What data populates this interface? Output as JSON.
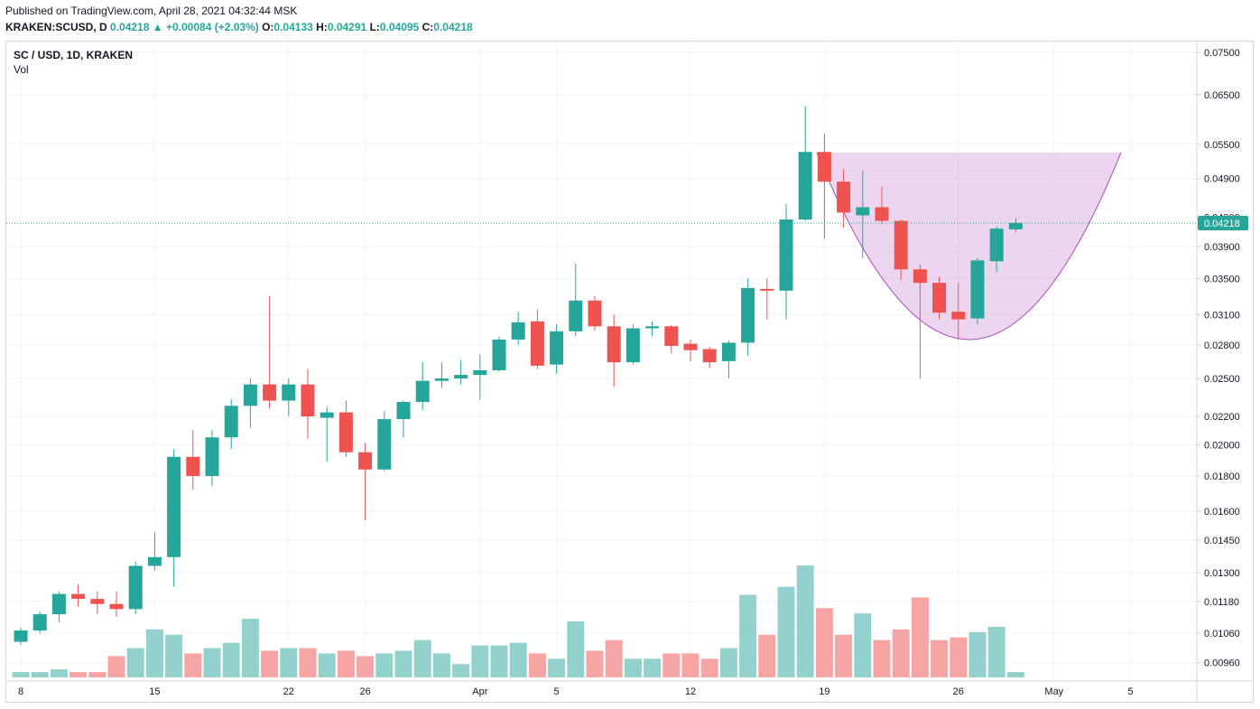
{
  "header": {
    "published": "Published on TradingView.com, April 28, 2021 04:32:44 MSK",
    "symbol_line": "KRAKEN:SCUSD, D",
    "last": "0.04218",
    "change": "+0.00084 (+2.03%)",
    "arrow": "▲",
    "o_label": "O:",
    "o_value": "0.04133",
    "h_label": "H:",
    "h_value": "0.04291",
    "l_label": "L:",
    "l_value": "0.04095",
    "c_label": "C:",
    "c_value": "0.04218"
  },
  "legend": {
    "symbol": "SC / USD, 1D, KRAKEN",
    "volume": "Vol"
  },
  "colors": {
    "up": "#26a69a",
    "down": "#ef5350",
    "vol_up": "#93d2cc",
    "vol_down": "#f6a5a4",
    "pattern": "#e1bee7",
    "pattern_line": "#ab47bc"
  },
  "chart_data": {
    "type": "candlestick",
    "y_scale": "log",
    "ylim": [
      0.00865,
      0.0775
    ],
    "y_ticks": [
      "0.07500",
      "0.06500",
      "0.05500",
      "0.04900",
      "0.04300",
      "0.03900",
      "0.03500",
      "0.03100",
      "0.02800",
      "0.02500",
      "0.02200",
      "0.02000",
      "0.01800",
      "0.01600",
      "0.01450",
      "0.01300",
      "0.01180",
      "0.01060",
      "0.00960"
    ],
    "x_ticks": [
      {
        "label": "8",
        "index": 0
      },
      {
        "label": "15",
        "index": 7
      },
      {
        "label": "22",
        "index": 14
      },
      {
        "label": "26",
        "index": 18
      },
      {
        "label": "Apr",
        "index": 24
      },
      {
        "label": "5",
        "index": 28
      },
      {
        "label": "12",
        "index": 35
      },
      {
        "label": "19",
        "index": 42
      },
      {
        "label": "26",
        "index": 49
      },
      {
        "label": "May",
        "index": 54
      },
      {
        "label": "5",
        "index": 58
      }
    ],
    "last_price": "0.04218",
    "candles": [
      {
        "o": 0.0103,
        "h": 0.0108,
        "l": 0.0102,
        "c": 0.0107
      },
      {
        "o": 0.0107,
        "h": 0.0114,
        "l": 0.0106,
        "c": 0.0113
      },
      {
        "o": 0.0113,
        "h": 0.0122,
        "l": 0.011,
        "c": 0.0121
      },
      {
        "o": 0.0121,
        "h": 0.0125,
        "l": 0.0116,
        "c": 0.0119
      },
      {
        "o": 0.0119,
        "h": 0.0122,
        "l": 0.0113,
        "c": 0.0117
      },
      {
        "o": 0.0117,
        "h": 0.0122,
        "l": 0.0112,
        "c": 0.0115
      },
      {
        "o": 0.0115,
        "h": 0.0135,
        "l": 0.0113,
        "c": 0.0133
      },
      {
        "o": 0.0133,
        "h": 0.0149,
        "l": 0.0131,
        "c": 0.0137
      },
      {
        "o": 0.0137,
        "h": 0.0197,
        "l": 0.0124,
        "c": 0.0192
      },
      {
        "o": 0.0192,
        "h": 0.021,
        "l": 0.0172,
        "c": 0.018
      },
      {
        "o": 0.018,
        "h": 0.021,
        "l": 0.0174,
        "c": 0.0205
      },
      {
        "o": 0.0205,
        "h": 0.0233,
        "l": 0.0197,
        "c": 0.0228
      },
      {
        "o": 0.0228,
        "h": 0.025,
        "l": 0.0212,
        "c": 0.0245
      },
      {
        "o": 0.0245,
        "h": 0.033,
        "l": 0.0226,
        "c": 0.0232
      },
      {
        "o": 0.0232,
        "h": 0.025,
        "l": 0.022,
        "c": 0.0245
      },
      {
        "o": 0.0245,
        "h": 0.0258,
        "l": 0.0204,
        "c": 0.022
      },
      {
        "o": 0.0219,
        "h": 0.0227,
        "l": 0.0189,
        "c": 0.0223
      },
      {
        "o": 0.0223,
        "h": 0.0232,
        "l": 0.0192,
        "c": 0.0195
      },
      {
        "o": 0.0195,
        "h": 0.0201,
        "l": 0.0155,
        "c": 0.0184
      },
      {
        "o": 0.0184,
        "h": 0.0224,
        "l": 0.0183,
        "c": 0.0218
      },
      {
        "o": 0.0218,
        "h": 0.0232,
        "l": 0.0205,
        "c": 0.0231
      },
      {
        "o": 0.0231,
        "h": 0.0264,
        "l": 0.0225,
        "c": 0.0248
      },
      {
        "o": 0.0248,
        "h": 0.0264,
        "l": 0.0242,
        "c": 0.025
      },
      {
        "o": 0.025,
        "h": 0.0266,
        "l": 0.0245,
        "c": 0.0253
      },
      {
        "o": 0.0253,
        "h": 0.0271,
        "l": 0.0233,
        "c": 0.0257
      },
      {
        "o": 0.0257,
        "h": 0.0288,
        "l": 0.0256,
        "c": 0.0285
      },
      {
        "o": 0.0285,
        "h": 0.0313,
        "l": 0.028,
        "c": 0.0302
      },
      {
        "o": 0.0303,
        "h": 0.0315,
        "l": 0.0258,
        "c": 0.0261
      },
      {
        "o": 0.0262,
        "h": 0.03,
        "l": 0.0254,
        "c": 0.0293
      },
      {
        "o": 0.0293,
        "h": 0.0368,
        "l": 0.0288,
        "c": 0.0325
      },
      {
        "o": 0.0325,
        "h": 0.033,
        "l": 0.0294,
        "c": 0.0298
      },
      {
        "o": 0.0298,
        "h": 0.031,
        "l": 0.0243,
        "c": 0.0264
      },
      {
        "o": 0.0264,
        "h": 0.03,
        "l": 0.0262,
        "c": 0.0296
      },
      {
        "o": 0.0296,
        "h": 0.0303,
        "l": 0.0288,
        "c": 0.0298
      },
      {
        "o": 0.0298,
        "h": 0.0299,
        "l": 0.0272,
        "c": 0.0279
      },
      {
        "o": 0.0281,
        "h": 0.0285,
        "l": 0.0265,
        "c": 0.0275
      },
      {
        "o": 0.0276,
        "h": 0.0278,
        "l": 0.0259,
        "c": 0.0264
      },
      {
        "o": 0.0265,
        "h": 0.0284,
        "l": 0.025,
        "c": 0.0282
      },
      {
        "o": 0.0282,
        "h": 0.035,
        "l": 0.027,
        "c": 0.0339
      },
      {
        "o": 0.0338,
        "h": 0.035,
        "l": 0.0305,
        "c": 0.0336
      },
      {
        "o": 0.0336,
        "h": 0.045,
        "l": 0.0305,
        "c": 0.0427
      },
      {
        "o": 0.0427,
        "h": 0.0625,
        "l": 0.0425,
        "c": 0.0536
      },
      {
        "o": 0.0536,
        "h": 0.057,
        "l": 0.04,
        "c": 0.0485
      },
      {
        "o": 0.0485,
        "h": 0.0506,
        "l": 0.0415,
        "c": 0.0437
      },
      {
        "o": 0.0433,
        "h": 0.0503,
        "l": 0.0375,
        "c": 0.0445
      },
      {
        "o": 0.0445,
        "h": 0.0477,
        "l": 0.042,
        "c": 0.0425
      },
      {
        "o": 0.0425,
        "h": 0.0427,
        "l": 0.0348,
        "c": 0.0361
      },
      {
        "o": 0.0361,
        "h": 0.0367,
        "l": 0.025,
        "c": 0.0345
      },
      {
        "o": 0.0345,
        "h": 0.0352,
        "l": 0.0305,
        "c": 0.0312
      },
      {
        "o": 0.0313,
        "h": 0.0345,
        "l": 0.0285,
        "c": 0.0305
      },
      {
        "o": 0.0306,
        "h": 0.0375,
        "l": 0.03,
        "c": 0.0372
      },
      {
        "o": 0.0371,
        "h": 0.0417,
        "l": 0.0358,
        "c": 0.0414
      },
      {
        "o": 0.0413,
        "h": 0.0429,
        "l": 0.0409,
        "c": 0.0422
      }
    ],
    "volume": [
      2,
      2,
      3,
      2,
      2,
      8,
      11,
      18,
      16,
      9,
      11,
      13,
      22,
      10,
      11,
      11,
      9,
      10,
      8,
      9,
      10,
      14,
      9,
      5,
      12,
      12,
      13,
      9,
      7,
      21,
      10,
      14,
      7,
      7,
      9,
      9,
      7,
      11,
      31,
      16,
      34,
      42,
      26,
      16,
      24,
      14,
      18,
      30,
      14,
      15,
      17,
      19,
      2
    ],
    "volume_max": 60,
    "cup_pattern": {
      "rim_start": {
        "index": 41.6,
        "price": 0.0535
      },
      "rim_end": {
        "index": 57.5,
        "price": 0.0535
      },
      "bottom": {
        "index": 49.6,
        "price": 0.0285
      }
    }
  }
}
